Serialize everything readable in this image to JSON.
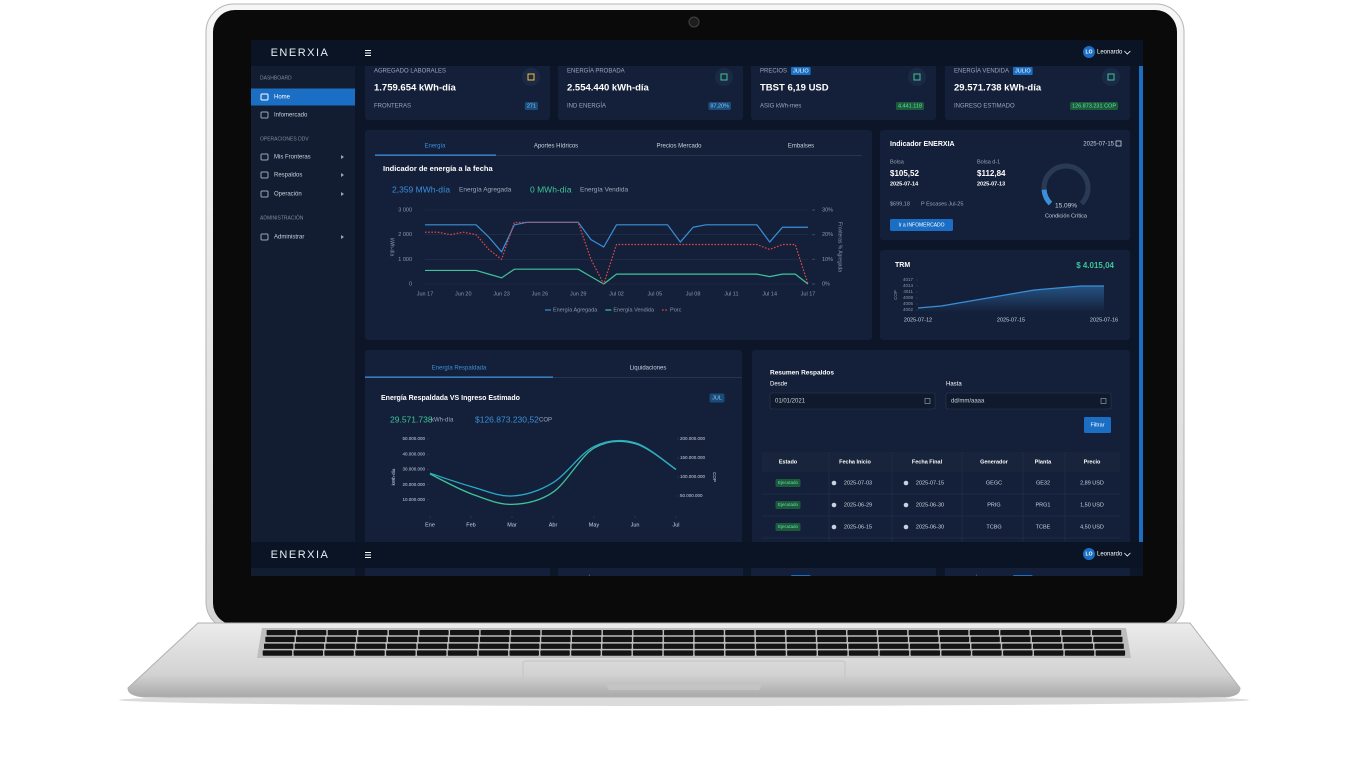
{
  "brand": "ENERXIA",
  "user": {
    "initials": "LO",
    "name": "Leonardo"
  },
  "sidebar": [
    {
      "title": "DASHBOARD",
      "items": [
        "Home",
        "Infomercado"
      ]
    },
    {
      "title": "OPERACIONES DDV",
      "items": [
        "Mis Fronteras",
        "Respaldos",
        "Operación"
      ]
    },
    {
      "title": "ADMINISTRACIÓN",
      "items": [
        "Administrar"
      ]
    }
  ],
  "kpis": [
    {
      "label": "AGREGADO LABORALES",
      "value": "1.759.654 kWh-día",
      "footer": "FRONTERAS",
      "pill": "271"
    },
    {
      "label": "ENERGÍA PROBADA",
      "value": "2.554.440 kWh-día",
      "footer": "IND ENERGÍA",
      "pill": "87,20%"
    },
    {
      "label": "PRECIOS",
      "tag": "JULIO",
      "value": "TBST  6,19 USD",
      "footer": "ASIG kWh-mes",
      "pill": "4.441.118"
    },
    {
      "label": "ENERGÍA VENDIDA",
      "tag": "JULIO",
      "value": "29.571.738 kWh-día",
      "footer": "INGRESO ESTIMADO",
      "pill": "126.873.231 COP"
    }
  ],
  "energy": {
    "tabs": [
      "Energía",
      "Aportes Hídricos",
      "Precios Mercado",
      "Embalses"
    ],
    "title": "Indicador de energía a la fecha",
    "stats": [
      {
        "value": "2,359 MWh-día",
        "label": "Energía Agregada"
      },
      {
        "value": "0 MWh-día",
        "label": "Energía Vendida"
      }
    ],
    "chart": {
      "type": "line",
      "ylabel": "kWh-día",
      "y2label": "Fronteras % Agregada",
      "grid": true,
      "categories": [
        "Jun 17",
        null,
        null,
        "Jun 20",
        null,
        null,
        "Jun 23",
        null,
        null,
        "Jun 26",
        null,
        null,
        "Jun 29",
        null,
        null,
        "Jul 02",
        null,
        null,
        "Jul 05",
        null,
        null,
        "Jul 08",
        null,
        null,
        "Jul 11",
        null,
        null,
        "Jul 14",
        null,
        null,
        "Jul 17"
      ],
      "series": [
        {
          "name": "Energía Agregada",
          "color": "#3b8fd9",
          "values": [
            2400,
            2400,
            2400,
            2400,
            2400,
            1900,
            1300,
            2400,
            2500,
            2500,
            2500,
            2500,
            2500,
            1800,
            1500,
            2400,
            2400,
            2400,
            2400,
            2400,
            1700,
            2300,
            2400,
            2400,
            2400,
            2400,
            2400,
            1700,
            2300,
            2300,
            2300
          ]
        },
        {
          "name": "Energía Vendida",
          "color": "#3fc39a",
          "values": [
            550,
            550,
            550,
            550,
            550,
            400,
            250,
            600,
            600,
            600,
            600,
            600,
            600,
            300,
            0,
            400,
            400,
            400,
            400,
            400,
            400,
            400,
            400,
            400,
            400,
            400,
            400,
            300,
            400,
            400,
            0
          ]
        },
        {
          "name": "Porc",
          "color": "#e04848",
          "axis": "y2",
          "dashed": true,
          "values": [
            21,
            21,
            20,
            21,
            20,
            14,
            10,
            25,
            25,
            25,
            25,
            25,
            25,
            10,
            0,
            16,
            16,
            16,
            16,
            16,
            16,
            16,
            16,
            16,
            16,
            16,
            16,
            14,
            16,
            16,
            0
          ]
        }
      ],
      "ylim": [
        0,
        3000
      ],
      "yticks": [
        0,
        {
          "value": 1000,
          "label": "1 000"
        },
        {
          "value": 2000,
          "label": "2 000"
        },
        {
          "value": 3000,
          "label": "3 000"
        }
      ],
      "y2lim": [
        0,
        30
      ],
      "y2ticks": [
        {
          "value": 0,
          "label": "0%"
        },
        {
          "value": 10,
          "label": "10%"
        },
        {
          "value": 20,
          "label": "20%"
        },
        {
          "value": 30,
          "label": "30%"
        }
      ]
    }
  },
  "indicator": {
    "title": "Indicador ENERXIA",
    "date": "2025-07-15",
    "bolsa": [
      {
        "label": "Bolsa",
        "value": "$105,52",
        "date": "2025-07-14"
      },
      {
        "label": "Bolsa d-1",
        "value": "$112,84",
        "date": "2025-07-13"
      }
    ],
    "escasez": {
      "value": "$699,18",
      "label": "P Escases Jul-25"
    },
    "button": "Ir a INFOMERCADO",
    "gauge": {
      "value": 15.09,
      "label": "15.09%",
      "caption": "Condición Crítica"
    }
  },
  "trm": {
    "title": "TRM",
    "value": "$ 4.015,04",
    "chart": {
      "type": "area",
      "ylabel": "COP",
      "color": "#3b8fd9",
      "categories": [
        "2025-07-12",
        null,
        null,
        null,
        "2025-07-15",
        null,
        null,
        null,
        "2025-07-16"
      ],
      "values": [
        4003,
        4004,
        4006,
        4008,
        4010,
        4012,
        4013,
        4014,
        4014
      ],
      "ylim": [
        4001,
        4018
      ],
      "yticks": [
        4002,
        4005,
        4008,
        4011,
        4014,
        4017
      ]
    }
  },
  "respaldo": {
    "tabs": [
      "Energía Respaldada",
      "Liquidaciones"
    ],
    "title": "Energía Respaldada VS Ingreso Estimado",
    "tag": "JUL",
    "stats": [
      {
        "value": "29.571.738",
        "unit": "kWh-día"
      },
      {
        "value": "$126.873.230,52",
        "unit": "COP"
      }
    ],
    "chart": {
      "type": "line",
      "ylabel": "kWh-día",
      "y2label": "COP",
      "categories": [
        "Ene",
        "Feb",
        "Mar",
        "Abr",
        "May",
        "Jun",
        "Jul"
      ],
      "series": [
        {
          "color": "#3fc39a",
          "values": [
            27000000,
            14000000,
            7000000,
            15000000,
            44000000,
            47000000,
            30000000
          ]
        },
        {
          "color": "#2aa9c9",
          "axis": "y2",
          "values": [
            110000000,
            75000000,
            50000000,
            85000000,
            180000000,
            190000000,
            120000000
          ]
        }
      ],
      "ylim": [
        0,
        50000000
      ],
      "yticks": [
        {
          "value": 10000000,
          "label": "10.000.000"
        },
        {
          "value": 20000000,
          "label": "20.000.000"
        },
        {
          "value": 30000000,
          "label": "30.000.000"
        },
        {
          "value": 40000000,
          "label": "40.000.000"
        },
        {
          "value": 50000000,
          "label": "50.000.000"
        }
      ],
      "y2lim": [
        0,
        200000000
      ],
      "y2ticks": [
        {
          "value": 50000000,
          "label": "50.000.000"
        },
        {
          "value": 100000000,
          "label": "100.000.000"
        },
        {
          "value": 150000000,
          "label": "150.000.000"
        },
        {
          "value": 200000000,
          "label": "200.000.000"
        }
      ]
    }
  },
  "resumen": {
    "title": "Resumen Respaldos",
    "from_label": "Desde",
    "from_value": "01/01/2021",
    "to_label": "Hasta",
    "to_placeholder": "dd/mm/aaaa",
    "button": "Filtrar",
    "table": {
      "headers": [
        "Estado",
        "Fecha Inicio",
        "Fecha Final",
        "Generador",
        "Planta",
        "Precio"
      ],
      "rows": [
        [
          "Ejecutado",
          "2025-07-03",
          "2025-07-15",
          "GEGC",
          "GE32",
          "2,89 USD"
        ],
        [
          "Ejecutado",
          "2025-06-29",
          "2025-06-30",
          "PRIG",
          "PRG1",
          "1,50 USD"
        ],
        [
          "Ejecutado",
          "2025-06-15",
          "2025-06-30",
          "TCBG",
          "TCBE",
          "4,50 USD"
        ]
      ]
    }
  }
}
